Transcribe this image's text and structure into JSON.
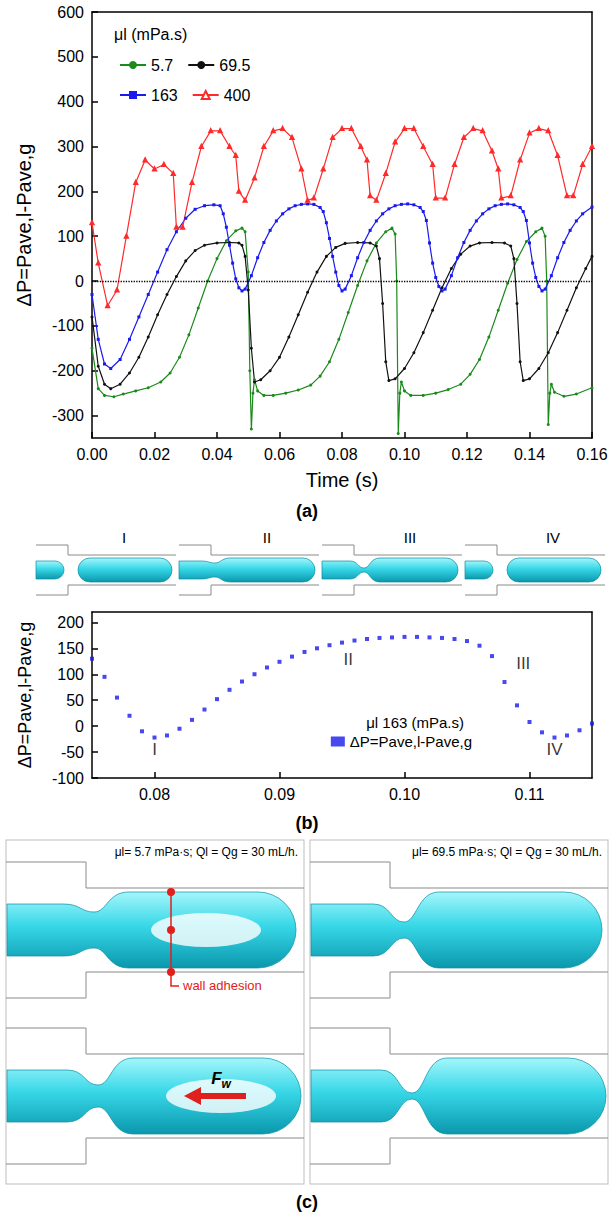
{
  "panel_labels": [
    "(a)",
    "(b)",
    "(c)"
  ],
  "chart_data": [
    {
      "type": "line",
      "legend_title": "μl (mPa.s)",
      "legend": "top-left",
      "x_label": "Time (s)",
      "y_label": "ΔP=Pave,l-Pave,g",
      "xlim": [
        0,
        0.16
      ],
      "xticks": [
        {
          "value": 0,
          "label": "0.00"
        },
        {
          "value": 0.02,
          "label": "0.02"
        },
        {
          "value": 0.04,
          "label": "0.04"
        },
        {
          "value": 0.06,
          "label": "0.06"
        },
        {
          "value": 0.08,
          "label": "0.08"
        },
        {
          "value": 0.1,
          "label": "0.10"
        },
        {
          "value": 0.12,
          "label": "0.12"
        },
        {
          "value": 0.14,
          "label": "0.14"
        },
        {
          "value": 0.16,
          "label": "0.16"
        }
      ],
      "ylim": [
        -350,
        600
      ],
      "yticks": [
        -300,
        -200,
        -100,
        0,
        100,
        200,
        300,
        400,
        500,
        600
      ],
      "hlines": [
        0
      ],
      "grid": false,
      "series": [
        {
          "name": "5.7",
          "color": "#1a8a1a",
          "marker": "circle",
          "line_style": "solid",
          "x": [
            0,
            0.002,
            0.004,
            0.007,
            0.01,
            0.014,
            0.018,
            0.022,
            0.025,
            0.028,
            0.031,
            0.034,
            0.037,
            0.04,
            0.043,
            0.046,
            0.048,
            0.049,
            0.05,
            0.0505,
            0.051,
            0.0515,
            0.052,
            0.053,
            0.055,
            0.058,
            0.062,
            0.066,
            0.07,
            0.073,
            0.076,
            0.079,
            0.082,
            0.085,
            0.088,
            0.091,
            0.094,
            0.096,
            0.097,
            0.0975,
            0.098,
            0.0985,
            0.099,
            0.1,
            0.102,
            0.106,
            0.11,
            0.114,
            0.118,
            0.121,
            0.124,
            0.127,
            0.13,
            0.133,
            0.136,
            0.139,
            0.142,
            0.144,
            0.145,
            0.1455,
            0.146,
            0.1465,
            0.147,
            0.148,
            0.151,
            0.155,
            0.16
          ],
          "values": [
            -150,
            -240,
            -255,
            -258,
            -252,
            -245,
            -238,
            -225,
            -205,
            -170,
            -120,
            -60,
            0,
            50,
            90,
            112,
            118,
            110,
            20,
            -200,
            -330,
            -250,
            -220,
            -245,
            -255,
            -255,
            -250,
            -243,
            -232,
            -212,
            -180,
            -130,
            -70,
            -10,
            45,
            85,
            110,
            118,
            105,
            0,
            -340,
            -250,
            -225,
            -245,
            -255,
            -255,
            -250,
            -242,
            -230,
            -208,
            -175,
            -125,
            -65,
            -5,
            48,
            88,
            110,
            118,
            100,
            0,
            -320,
            -250,
            -230,
            -248,
            -257,
            -252,
            -238
          ]
        },
        {
          "name": "69.5",
          "color": "#111111",
          "marker": "circle",
          "line_style": "solid",
          "x": [
            0,
            0.002,
            0.004,
            0.006,
            0.009,
            0.012,
            0.015,
            0.018,
            0.021,
            0.024,
            0.027,
            0.03,
            0.033,
            0.036,
            0.04,
            0.044,
            0.047,
            0.048,
            0.049,
            0.05,
            0.051,
            0.052,
            0.054,
            0.057,
            0.06,
            0.063,
            0.066,
            0.069,
            0.072,
            0.075,
            0.078,
            0.081,
            0.085,
            0.089,
            0.091,
            0.092,
            0.093,
            0.094,
            0.095,
            0.097,
            0.1,
            0.103,
            0.106,
            0.109,
            0.112,
            0.115,
            0.118,
            0.121,
            0.124,
            0.128,
            0.132,
            0.134,
            0.135,
            0.136,
            0.137,
            0.138,
            0.14,
            0.143,
            0.146,
            0.149,
            0.152,
            0.155,
            0.158,
            0.16
          ],
          "values": [
            -80,
            -190,
            -230,
            -240,
            -230,
            -205,
            -170,
            -125,
            -75,
            -30,
            10,
            45,
            68,
            80,
            85,
            86,
            85,
            80,
            55,
            -20,
            -150,
            -225,
            -220,
            -200,
            -170,
            -125,
            -75,
            -25,
            20,
            55,
            75,
            84,
            86,
            85,
            78,
            50,
            -50,
            -180,
            -222,
            -218,
            -195,
            -160,
            -115,
            -65,
            -15,
            28,
            60,
            78,
            85,
            86,
            85,
            78,
            50,
            -50,
            -180,
            -222,
            -218,
            -195,
            -160,
            -115,
            -65,
            -15,
            28,
            55
          ]
        },
        {
          "name": "163",
          "color": "#1a1aee",
          "marker": "square",
          "line_style": "solid",
          "x": [
            0,
            0.002,
            0.004,
            0.006,
            0.009,
            0.012,
            0.015,
            0.018,
            0.021,
            0.024,
            0.027,
            0.03,
            0.033,
            0.036,
            0.039,
            0.041,
            0.042,
            0.043,
            0.044,
            0.045,
            0.046,
            0.047,
            0.048,
            0.049,
            0.051,
            0.053,
            0.055,
            0.057,
            0.059,
            0.061,
            0.063,
            0.065,
            0.067,
            0.069,
            0.071,
            0.073,
            0.074,
            0.075,
            0.076,
            0.077,
            0.078,
            0.079,
            0.08,
            0.081,
            0.083,
            0.085,
            0.087,
            0.089,
            0.091,
            0.093,
            0.095,
            0.097,
            0.099,
            0.101,
            0.103,
            0.105,
            0.106,
            0.107,
            0.108,
            0.109,
            0.11,
            0.111,
            0.112,
            0.113,
            0.115,
            0.117,
            0.119,
            0.121,
            0.123,
            0.125,
            0.127,
            0.129,
            0.131,
            0.133,
            0.135,
            0.137,
            0.138,
            0.139,
            0.14,
            0.141,
            0.142,
            0.143,
            0.144,
            0.145,
            0.147,
            0.149,
            0.151,
            0.153,
            0.155,
            0.157,
            0.16
          ],
          "values": [
            -30,
            -130,
            -185,
            -195,
            -175,
            -130,
            -80,
            -30,
            20,
            70,
            110,
            140,
            160,
            168,
            170,
            168,
            150,
            120,
            80,
            40,
            5,
            -15,
            -22,
            -18,
            12,
            52,
            86,
            113,
            134,
            150,
            161,
            168,
            171,
            172,
            171,
            164,
            155,
            130,
            95,
            55,
            20,
            -10,
            -22,
            -18,
            12,
            52,
            86,
            113,
            134,
            150,
            161,
            168,
            171,
            172,
            170,
            164,
            155,
            135,
            85,
            40,
            8,
            -12,
            -22,
            -18,
            12,
            52,
            86,
            113,
            134,
            150,
            161,
            168,
            171,
            172,
            170,
            164,
            155,
            135,
            85,
            40,
            8,
            -12,
            -22,
            -18,
            12,
            52,
            86,
            113,
            134,
            150,
            165
          ]
        },
        {
          "name": "400",
          "color": "#ff2a2a",
          "marker": "triangle-open",
          "line_style": "solid",
          "x": [
            0,
            0.002,
            0.005,
            0.008,
            0.011,
            0.014,
            0.017,
            0.02,
            0.023,
            0.026,
            0.027,
            0.029,
            0.032,
            0.035,
            0.038,
            0.041,
            0.044,
            0.046,
            0.047,
            0.049,
            0.052,
            0.055,
            0.058,
            0.061,
            0.064,
            0.067,
            0.069,
            0.071,
            0.074,
            0.077,
            0.08,
            0.083,
            0.086,
            0.088,
            0.089,
            0.091,
            0.094,
            0.097,
            0.1,
            0.103,
            0.106,
            0.109,
            0.11,
            0.113,
            0.116,
            0.119,
            0.122,
            0.125,
            0.128,
            0.13,
            0.131,
            0.134,
            0.137,
            0.14,
            0.143,
            0.146,
            0.149,
            0.152,
            0.154,
            0.157,
            0.16
          ],
          "values": [
            130,
            40,
            -55,
            -20,
            100,
            220,
            270,
            250,
            260,
            240,
            120,
            120,
            220,
            300,
            335,
            335,
            300,
            280,
            200,
            180,
            230,
            300,
            335,
            340,
            320,
            250,
            180,
            185,
            250,
            320,
            340,
            340,
            300,
            270,
            190,
            180,
            240,
            310,
            340,
            340,
            300,
            260,
            185,
            185,
            260,
            320,
            340,
            335,
            290,
            250,
            185,
            190,
            270,
            330,
            340,
            335,
            280,
            190,
            190,
            260,
            300
          ]
        }
      ]
    },
    {
      "type": "scatter",
      "legend_title": "μl 163 (mPa.s)",
      "legend": "bottom-right",
      "y_label": "ΔP=Pave,l-Pave,g",
      "xlim": [
        0.075,
        0.115
      ],
      "xticks": [
        0.08,
        0.09,
        {
          "value": 0.1,
          "label": "0.10"
        },
        0.11
      ],
      "ylim": [
        -100,
        220
      ],
      "yticks": [
        -100,
        -50,
        0,
        50,
        100,
        150,
        200
      ],
      "grid": false,
      "annotations": [
        {
          "text": "I",
          "x": 0.08,
          "y": -45
        },
        {
          "text": "II",
          "x": 0.0955,
          "y": 128
        },
        {
          "text": "III",
          "x": 0.1095,
          "y": 120
        },
        {
          "text": "IV",
          "x": 0.112,
          "y": -45
        }
      ],
      "series": [
        {
          "name": "ΔP=Pave,l-Pave,g",
          "color": "#1a1aee",
          "marker": "square",
          "x": [
            0.075,
            0.076,
            0.077,
            0.078,
            0.079,
            0.08,
            0.081,
            0.082,
            0.083,
            0.084,
            0.085,
            0.086,
            0.087,
            0.088,
            0.089,
            0.09,
            0.091,
            0.092,
            0.093,
            0.094,
            0.095,
            0.096,
            0.097,
            0.098,
            0.099,
            0.1,
            0.101,
            0.102,
            0.103,
            0.104,
            0.105,
            0.106,
            0.107,
            0.108,
            0.109,
            0.11,
            0.111,
            0.112,
            0.113,
            0.114,
            0.115
          ],
          "values": [
            130,
            95,
            55,
            20,
            -10,
            -22,
            -18,
            -5,
            12,
            32,
            52,
            70,
            86,
            100,
            113,
            124,
            134,
            143,
            150,
            156,
            161,
            165,
            168,
            170,
            171,
            172,
            172,
            171,
            170,
            168,
            164,
            155,
            135,
            85,
            40,
            8,
            -12,
            -22,
            -18,
            -8,
            5
          ]
        }
      ]
    }
  ],
  "diagram": {
    "captions": [
      "μl= 5.7 mPa·s; Ql = Qg = 30 mL/h.",
      "μl= 69.5 mPa·s; Ql = Qg = 30 mL/h."
    ],
    "annotations": [
      "wall adhesion",
      "Fw"
    ]
  }
}
